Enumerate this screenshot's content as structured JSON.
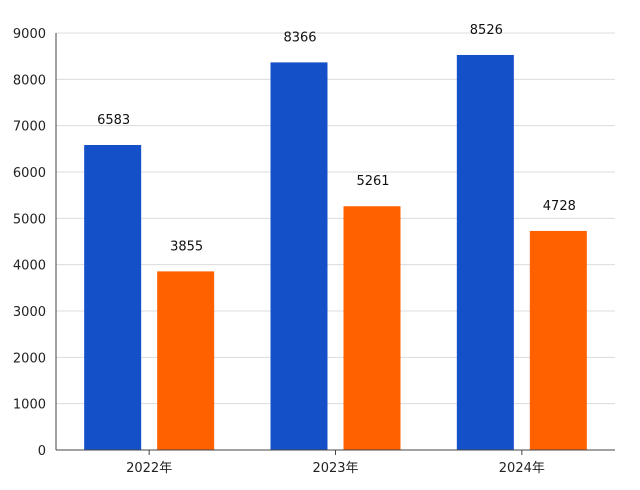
{
  "chart_data": {
    "type": "bar",
    "title": "",
    "xlabel": "",
    "ylabel": "",
    "categories": [
      "2022年",
      "2023年",
      "2024年"
    ],
    "series": [
      {
        "values": [
          6583,
          8366,
          8526
        ],
        "color": "#1450c8"
      },
      {
        "values": [
          3855,
          5261,
          4728
        ],
        "color": "#ff6000"
      }
    ],
    "ylim": [
      0,
      9000
    ],
    "yticks": [
      0,
      1000,
      2000,
      3000,
      4000,
      5000,
      6000,
      7000,
      8000,
      9000
    ],
    "grid": true,
    "legend": "none",
    "data_labels": true
  }
}
